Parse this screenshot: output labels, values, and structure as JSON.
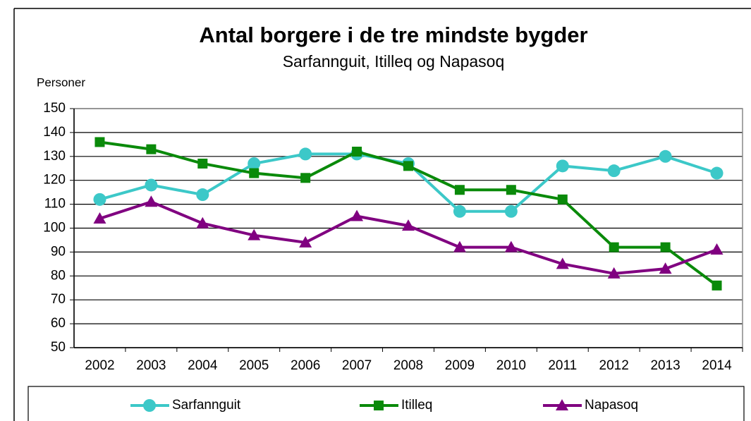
{
  "chart_data": {
    "type": "line",
    "title": "Antal borgere i de tre mindste bygder",
    "subtitle": "Sarfannguit,  Itilleq  og Napasoq",
    "y_label": "Personer",
    "categories": [
      "2002",
      "2003",
      "2004",
      "2005",
      "2006",
      "2007",
      "2008",
      "2009",
      "2010",
      "2011",
      "2012",
      "2013",
      "2014"
    ],
    "series": [
      {
        "name": "Sarfannguit",
        "color": "#3cc8c8",
        "marker": "circle",
        "values": [
          112,
          118,
          114,
          127,
          131,
          131,
          127,
          107,
          107,
          126,
          124,
          130,
          123
        ]
      },
      {
        "name": "Itilleq",
        "color": "#0a8a0a",
        "marker": "square",
        "values": [
          136,
          133,
          127,
          123,
          121,
          132,
          126,
          116,
          116,
          112,
          92,
          92,
          76
        ]
      },
      {
        "name": "Napasoq",
        "color": "#800080",
        "marker": "triangle",
        "values": [
          104,
          111,
          102,
          97,
          94,
          105,
          101,
          92,
          92,
          85,
          81,
          83,
          91
        ]
      }
    ],
    "ylim": [
      50,
      150
    ],
    "yticks": [
      50,
      60,
      70,
      80,
      90,
      100,
      110,
      120,
      130,
      140,
      150
    ],
    "grid": true,
    "legend": "bottom"
  }
}
